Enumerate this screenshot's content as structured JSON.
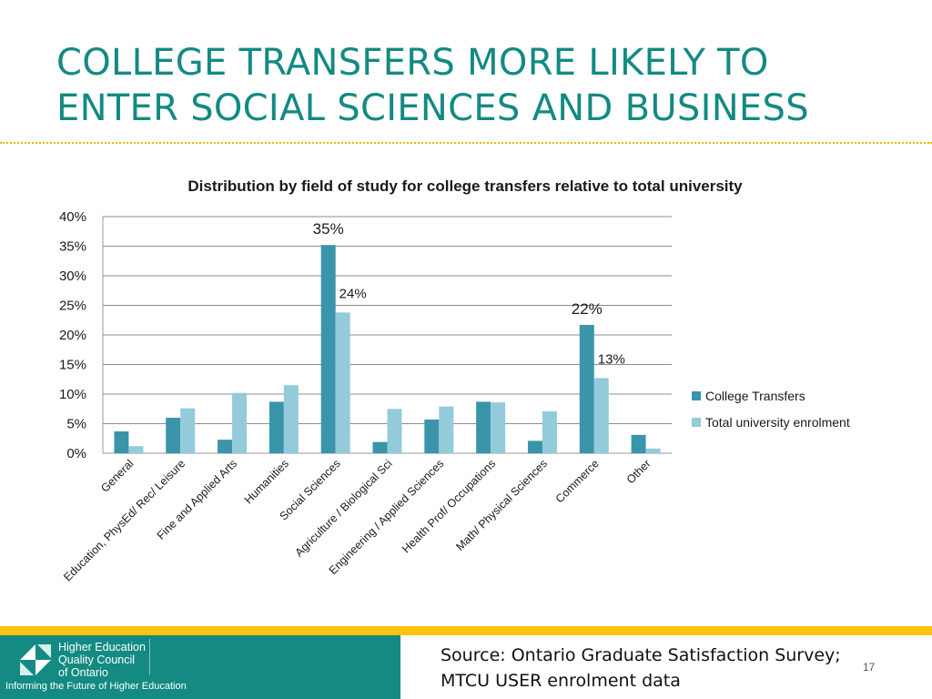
{
  "slide": {
    "title_lines": [
      "COLLEGE TRANSFERS MORE LIKELY TO",
      "ENTER SOCIAL SCIENCES AND BUSINESS"
    ],
    "source_lines": [
      "Source: Ontario Graduate Satisfaction Survey;",
      "MTCU USER enrolment data"
    ],
    "page_number": "17"
  },
  "footer": {
    "org_name_lines": [
      "Higher Education",
      "Quality Council",
      "of Ontario"
    ],
    "tagline": "Informing the Future of Higher Education",
    "logo_icon": "heqco-logo-icon"
  },
  "colors": {
    "title": "#138a82",
    "accent_rule": "#e8b700",
    "footer_band": "#ffc20e",
    "footer_box": "#138a82",
    "college_transfers": "#3a95ab",
    "total_university": "#94cbdb"
  },
  "chart_data": {
    "type": "bar",
    "title": "Distribution by field of study for college transfers relative to total university",
    "categories": [
      "General",
      "Education, PhysEd/ Rec/ Leisure",
      "Fine and Applied Arts",
      "Humanities",
      "Social Sciences",
      "Agriculture / Biological Sci",
      "Engineering / Applied Sciences",
      "Health Prof/ Occupations",
      "Math/ Physical Sciences",
      "Commerce",
      "Other"
    ],
    "series": [
      {
        "name": "College Transfers",
        "values": [
          3.7,
          6.0,
          2.3,
          8.7,
          35.2,
          1.9,
          5.7,
          8.7,
          2.1,
          21.7,
          3.1
        ]
      },
      {
        "name": "Total university enrolment",
        "values": [
          1.2,
          7.6,
          10.2,
          11.5,
          23.8,
          7.5,
          7.9,
          8.6,
          7.1,
          12.7,
          0.8
        ]
      }
    ],
    "data_labels": [
      {
        "series": 0,
        "index": 4,
        "text": "35%"
      },
      {
        "series": 1,
        "index": 4,
        "text": "24%"
      },
      {
        "series": 0,
        "index": 9,
        "text": "22%"
      },
      {
        "series": 1,
        "index": 9,
        "text": "13%"
      }
    ],
    "yticks": [
      "0%",
      "5%",
      "10%",
      "15%",
      "20%",
      "25%",
      "30%",
      "35%",
      "40%"
    ],
    "ylim": [
      0,
      40
    ],
    "xlabel": "",
    "ylabel": "",
    "grid": true,
    "legend_position": "right"
  }
}
